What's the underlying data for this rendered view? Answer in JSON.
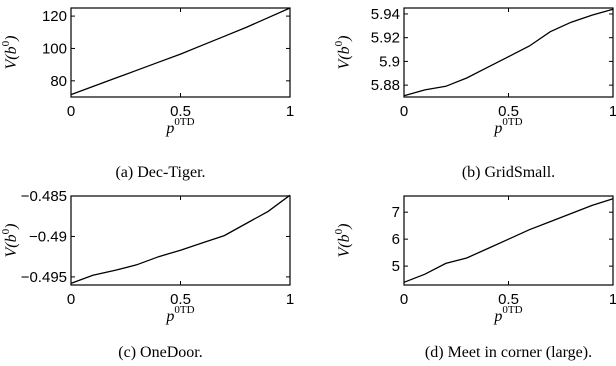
{
  "chart_data": [
    {
      "type": "line",
      "caption": "(a) Dec-Tiger.",
      "ylabel": "V(b",
      "ylabel_sup": "0",
      "ylabel_close": ")",
      "xlabel": "p",
      "xlabel_sup": "0TD",
      "xlim": [
        0,
        1
      ],
      "ylim": [
        70,
        125
      ],
      "xticks": [
        0,
        0.5,
        1
      ],
      "xtick_labels": [
        "0",
        "0.5",
        "1"
      ],
      "yticks": [
        80,
        100,
        120
      ],
      "ytick_labels": [
        "80",
        "100",
        "120"
      ],
      "grid": false,
      "series": [
        {
          "x": [
            0,
            0.1,
            0.2,
            0.3,
            0.4,
            0.5,
            0.6,
            0.7,
            0.8,
            0.9,
            1.0
          ],
          "values": [
            71.5,
            76.5,
            81.5,
            86.5,
            91.5,
            96.5,
            102,
            107.5,
            113,
            119,
            125
          ]
        }
      ]
    },
    {
      "type": "line",
      "caption": "(b) GridSmall.",
      "ylabel": "V(b",
      "ylabel_sup": "0",
      "ylabel_close": ")",
      "xlabel": "p",
      "xlabel_sup": "0TD",
      "xlim": [
        0,
        1
      ],
      "ylim": [
        5.87,
        5.945
      ],
      "xticks": [
        0,
        0.5,
        1
      ],
      "xtick_labels": [
        "0",
        "0.5",
        "1"
      ],
      "yticks": [
        5.88,
        5.9,
        5.92,
        5.94
      ],
      "ytick_labels": [
        "5.88",
        "5.9",
        "5.92",
        "5.94"
      ],
      "grid": false,
      "series": [
        {
          "x": [
            0,
            0.1,
            0.2,
            0.3,
            0.4,
            0.5,
            0.6,
            0.7,
            0.8,
            0.9,
            1.0
          ],
          "values": [
            5.871,
            5.876,
            5.879,
            5.886,
            5.895,
            5.904,
            5.913,
            5.925,
            5.933,
            5.939,
            5.944
          ]
        }
      ]
    },
    {
      "type": "line",
      "caption": "(c) OneDoor.",
      "ylabel": "V(b",
      "ylabel_sup": "0",
      "ylabel_close": ")",
      "xlabel": "p",
      "xlabel_sup": "0TD",
      "xlim": [
        0,
        1
      ],
      "ylim": [
        -0.496,
        -0.485
      ],
      "xticks": [
        0,
        0.5,
        1
      ],
      "xtick_labels": [
        "0",
        "0.5",
        "1"
      ],
      "yticks": [
        -0.495,
        -0.49,
        -0.485
      ],
      "ytick_labels": [
        "−0.495",
        "−0.49",
        "−0.485"
      ],
      "grid": false,
      "series": [
        {
          "x": [
            0,
            0.1,
            0.2,
            0.3,
            0.4,
            0.5,
            0.6,
            0.7,
            0.8,
            0.9,
            1.0
          ],
          "values": [
            -0.4958,
            -0.4948,
            -0.4942,
            -0.4935,
            -0.4925,
            -0.4917,
            -0.4908,
            -0.4899,
            -0.4884,
            -0.4869,
            -0.4849
          ]
        }
      ]
    },
    {
      "type": "line",
      "caption": "(d) Meet in corner (large).",
      "ylabel": "V(b",
      "ylabel_sup": "0",
      "ylabel_close": ")",
      "xlabel": "p",
      "xlabel_sup": "0TD",
      "xlim": [
        0,
        1
      ],
      "ylim": [
        4.3,
        7.6
      ],
      "xticks": [
        0,
        0.5,
        1
      ],
      "xtick_labels": [
        "0",
        "0.5",
        "1"
      ],
      "yticks": [
        5,
        6,
        7
      ],
      "ytick_labels": [
        "5",
        "6",
        "7"
      ],
      "grid": false,
      "series": [
        {
          "x": [
            0,
            0.1,
            0.2,
            0.3,
            0.4,
            0.5,
            0.6,
            0.7,
            0.8,
            0.9,
            1.0
          ],
          "values": [
            4.4,
            4.7,
            5.1,
            5.3,
            5.65,
            6.0,
            6.35,
            6.65,
            6.95,
            7.25,
            7.5
          ]
        }
      ]
    }
  ]
}
